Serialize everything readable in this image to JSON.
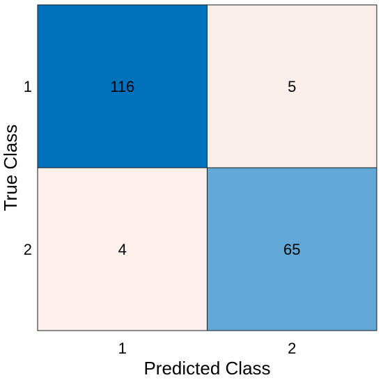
{
  "chart_data": {
    "type": "heatmap",
    "title": "",
    "xlabel": "Predicted Class",
    "ylabel": "True Class",
    "x_categories": [
      "1",
      "2"
    ],
    "y_categories": [
      "1",
      "2"
    ],
    "values": [
      [
        116,
        5
      ],
      [
        4,
        65
      ]
    ],
    "value_labels": [
      [
        "116",
        "5"
      ],
      [
        "4",
        "65"
      ]
    ],
    "colors": {
      "high": "#0072BD",
      "mid": "#6AADD9",
      "low": "#FDEFEA",
      "text_light": "#ffffff",
      "text_dark": "#000000",
      "border": "#1a1a1a"
    }
  }
}
